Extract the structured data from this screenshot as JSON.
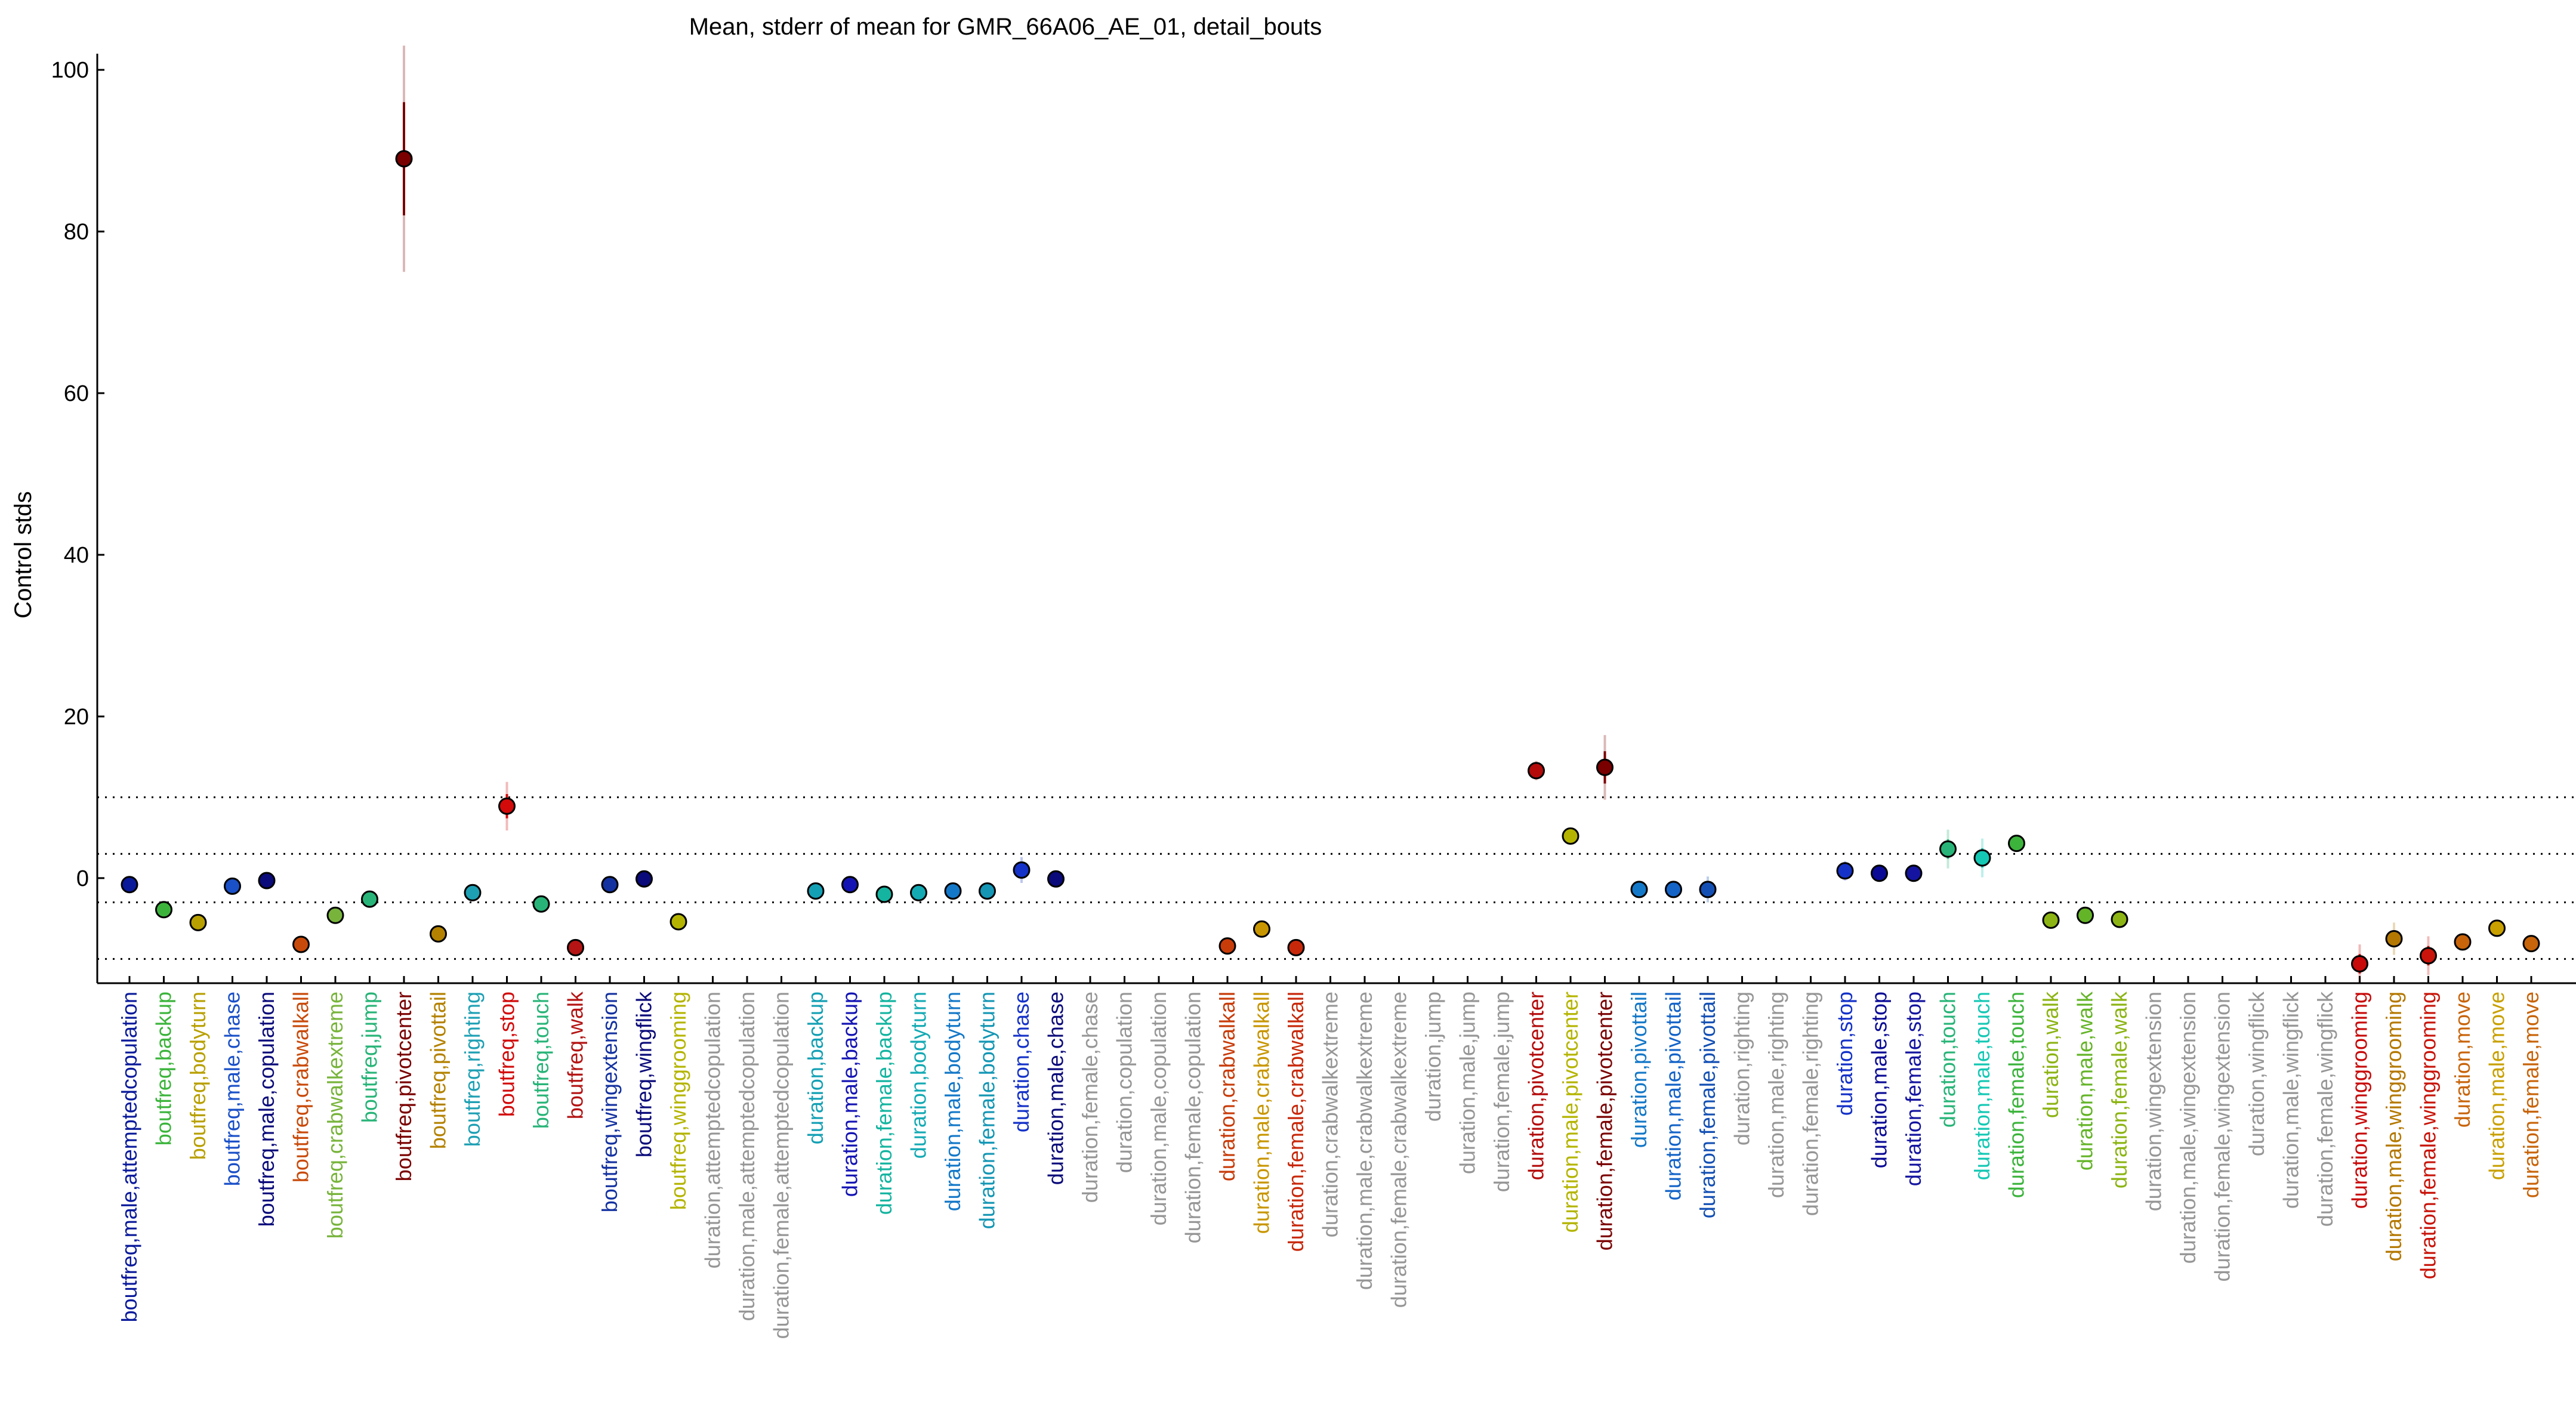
{
  "chart_data": {
    "type": "scatter",
    "title": "Mean, stderr of mean for GMR_66A06_AE_01, detail_bouts",
    "xlabel": "",
    "ylabel": "Control stds",
    "ylim": [
      -13,
      102
    ],
    "yticks": [
      0,
      20,
      40,
      60,
      80,
      100
    ],
    "grid": false,
    "reference_lines_y": [
      -10,
      -3,
      3,
      10
    ],
    "points": [
      {
        "label": "boutfreq,male,attemptedcopulation",
        "y": -0.8,
        "se": 0.4,
        "color": "#0a1a9a",
        "label_color": "#0a1a9a"
      },
      {
        "label": "boutfreq,backup",
        "y": -3.9,
        "se": 0.4,
        "color": "#3cb43c",
        "label_color": "#3cb43c"
      },
      {
        "label": "boutfreq,bodyturn",
        "y": -5.5,
        "se": 0.4,
        "color": "#b8a000",
        "label_color": "#b8a000"
      },
      {
        "label": "boutfreq,male,chase",
        "y": -1.0,
        "se": 0.4,
        "color": "#1a50c8",
        "label_color": "#1a50c8"
      },
      {
        "label": "boutfreq,male,copulation",
        "y": -0.3,
        "se": 0.4,
        "color": "#0a0a7a",
        "label_color": "#0a0a7a"
      },
      {
        "label": "boutfreq,crabwalkall",
        "y": -8.2,
        "se": 0.4,
        "color": "#c84a0a",
        "label_color": "#c84a0a"
      },
      {
        "label": "boutfreq,crabwalkextreme",
        "y": -4.6,
        "se": 0.4,
        "color": "#78b43c",
        "label_color": "#78b43c"
      },
      {
        "label": "boutfreq,jump",
        "y": -2.6,
        "se": 0.4,
        "color": "#28b478",
        "label_color": "#28b478"
      },
      {
        "label": "boutfreq,pivotcenter",
        "y": 89.0,
        "se": 7.0,
        "color": "#7a0000",
        "label_color": "#7a0000"
      },
      {
        "label": "boutfreq,pivottail",
        "y": -6.9,
        "se": 0.4,
        "color": "#b48200",
        "label_color": "#b48200"
      },
      {
        "label": "boutfreq,righting",
        "y": -1.8,
        "se": 0.4,
        "color": "#1ea0b4",
        "label_color": "#1ea0b4"
      },
      {
        "label": "boutfreq,stop",
        "y": 8.9,
        "se": 1.5,
        "color": "#d20a0a",
        "label_color": "#d20a0a"
      },
      {
        "label": "boutfreq,touch",
        "y": -3.2,
        "se": 0.4,
        "color": "#28b478",
        "label_color": "#28b478"
      },
      {
        "label": "boutfreq,walk",
        "y": -8.6,
        "se": 0.4,
        "color": "#b41414",
        "label_color": "#b41414"
      },
      {
        "label": "boutfreq,wingextension",
        "y": -0.8,
        "se": 0.4,
        "color": "#1432a0",
        "label_color": "#1432a0"
      },
      {
        "label": "boutfreq,wingflick",
        "y": -0.1,
        "se": 0.4,
        "color": "#0a0a7a",
        "label_color": "#0a0a7a"
      },
      {
        "label": "boutfreq,winggrooming",
        "y": -5.4,
        "se": 0.4,
        "color": "#b4b400",
        "label_color": "#b4b400"
      },
      {
        "label": "duration,attemptedcopulation",
        "y": null,
        "se": null,
        "color": "#969696",
        "label_color": "#969696"
      },
      {
        "label": "duration,male,attemptedcopulation",
        "y": null,
        "se": null,
        "color": "#969696",
        "label_color": "#969696"
      },
      {
        "label": "duration,female,attemptedcopulation",
        "y": null,
        "se": null,
        "color": "#969696",
        "label_color": "#969696"
      },
      {
        "label": "duration,backup",
        "y": -1.6,
        "se": 0.4,
        "color": "#14a0b4",
        "label_color": "#14a0b4"
      },
      {
        "label": "duration,male,backup",
        "y": -0.8,
        "se": 0.4,
        "color": "#1414b4",
        "label_color": "#1414b4"
      },
      {
        "label": "duration,female,backup",
        "y": -2.0,
        "se": 0.4,
        "color": "#14b4a0",
        "label_color": "#14b4a0"
      },
      {
        "label": "duration,bodyturn",
        "y": -1.8,
        "se": 0.4,
        "color": "#14aab4",
        "label_color": "#14aab4"
      },
      {
        "label": "duration,male,bodyturn",
        "y": -1.6,
        "se": 0.4,
        "color": "#1478c8",
        "label_color": "#1478c8"
      },
      {
        "label": "duration,female,bodyturn",
        "y": -1.6,
        "se": 0.4,
        "color": "#1496b4",
        "label_color": "#1496b4"
      },
      {
        "label": "duration,chase",
        "y": 1.0,
        "se": 0.8,
        "color": "#1432c8",
        "label_color": "#1432c8"
      },
      {
        "label": "duration,male,chase",
        "y": -0.1,
        "se": 0.4,
        "color": "#0a0a7a",
        "label_color": "#0a0a7a"
      },
      {
        "label": "duration,female,chase",
        "y": null,
        "se": null,
        "color": "#969696",
        "label_color": "#969696"
      },
      {
        "label": "duration,copulation",
        "y": null,
        "se": null,
        "color": "#969696",
        "label_color": "#969696"
      },
      {
        "label": "duration,male,copulation",
        "y": null,
        "se": null,
        "color": "#969696",
        "label_color": "#969696"
      },
      {
        "label": "duration,female,copulation",
        "y": null,
        "se": null,
        "color": "#969696",
        "label_color": "#969696"
      },
      {
        "label": "duration,crabwalkall",
        "y": -8.4,
        "se": 0.4,
        "color": "#c83c0a",
        "label_color": "#c83c0a"
      },
      {
        "label": "duration,male,crabwalkall",
        "y": -6.3,
        "se": 0.4,
        "color": "#c89600",
        "label_color": "#c89600"
      },
      {
        "label": "duration,female,crabwalkall",
        "y": -8.6,
        "se": 0.4,
        "color": "#c8280a",
        "label_color": "#c8280a"
      },
      {
        "label": "duration,crabwalkextreme",
        "y": null,
        "se": null,
        "color": "#969696",
        "label_color": "#969696"
      },
      {
        "label": "duration,male,crabwalkextreme",
        "y": null,
        "se": null,
        "color": "#969696",
        "label_color": "#969696"
      },
      {
        "label": "duration,female,crabwalkextreme",
        "y": null,
        "se": null,
        "color": "#969696",
        "label_color": "#969696"
      },
      {
        "label": "duration,jump",
        "y": null,
        "se": null,
        "color": "#969696",
        "label_color": "#969696"
      },
      {
        "label": "duration,male,jump",
        "y": null,
        "se": null,
        "color": "#969696",
        "label_color": "#969696"
      },
      {
        "label": "duration,female,jump",
        "y": null,
        "se": null,
        "color": "#969696",
        "label_color": "#969696"
      },
      {
        "label": "duration,pivotcenter",
        "y": 13.3,
        "se": 0.6,
        "color": "#b40a0a",
        "label_color": "#b40a0a"
      },
      {
        "label": "duration,male,pivotcenter",
        "y": 5.2,
        "se": 0.5,
        "color": "#b4b400",
        "label_color": "#b4b400"
      },
      {
        "label": "duration,female,pivotcenter",
        "y": 13.7,
        "se": 2.0,
        "color": "#7a0000",
        "label_color": "#7a0000"
      },
      {
        "label": "duration,pivottail",
        "y": -1.4,
        "se": 0.4,
        "color": "#1478c8",
        "label_color": "#1478c8"
      },
      {
        "label": "duration,male,pivottail",
        "y": -1.4,
        "se": 0.4,
        "color": "#1464c8",
        "label_color": "#1464c8"
      },
      {
        "label": "duration,female,pivottail",
        "y": -1.4,
        "se": 0.8,
        "color": "#1450b4",
        "label_color": "#1450b4"
      },
      {
        "label": "duration,righting",
        "y": null,
        "se": null,
        "color": "#969696",
        "label_color": "#969696"
      },
      {
        "label": "duration,male,righting",
        "y": null,
        "se": null,
        "color": "#969696",
        "label_color": "#969696"
      },
      {
        "label": "duration,female,righting",
        "y": null,
        "se": null,
        "color": "#969696",
        "label_color": "#969696"
      },
      {
        "label": "duration,stop",
        "y": 0.9,
        "se": 0.6,
        "color": "#1432c8",
        "label_color": "#1432c8"
      },
      {
        "label": "duration,male,stop",
        "y": 0.6,
        "se": 0.4,
        "color": "#0a0a96",
        "label_color": "#0a0a96"
      },
      {
        "label": "duration,female,stop",
        "y": 0.6,
        "se": 0.4,
        "color": "#1414a0",
        "label_color": "#1414a0"
      },
      {
        "label": "duration,touch",
        "y": 3.6,
        "se": 1.2,
        "color": "#28b478",
        "label_color": "#28b478"
      },
      {
        "label": "duration,male,touch",
        "y": 2.5,
        "se": 1.2,
        "color": "#14c8b4",
        "label_color": "#14c8b4"
      },
      {
        "label": "duration,female,touch",
        "y": 4.3,
        "se": 0.5,
        "color": "#3cb43c",
        "label_color": "#3cb43c"
      },
      {
        "label": "duration,walk",
        "y": -5.2,
        "se": 0.4,
        "color": "#8cb414",
        "label_color": "#8cb414"
      },
      {
        "label": "duration,male,walk",
        "y": -4.6,
        "se": 0.4,
        "color": "#64b428",
        "label_color": "#64b428"
      },
      {
        "label": "duration,female,walk",
        "y": -5.1,
        "se": 0.4,
        "color": "#8cb414",
        "label_color": "#8cb414"
      },
      {
        "label": "duration,wingextension",
        "y": null,
        "se": null,
        "color": "#969696",
        "label_color": "#969696"
      },
      {
        "label": "duration,male,wingextension",
        "y": null,
        "se": null,
        "color": "#969696",
        "label_color": "#969696"
      },
      {
        "label": "duration,female,wingextension",
        "y": null,
        "se": null,
        "color": "#969696",
        "label_color": "#969696"
      },
      {
        "label": "duration,wingflick",
        "y": null,
        "se": null,
        "color": "#969696",
        "label_color": "#969696"
      },
      {
        "label": "duration,male,wingflick",
        "y": null,
        "se": null,
        "color": "#969696",
        "label_color": "#969696"
      },
      {
        "label": "duration,female,wingflick",
        "y": null,
        "se": null,
        "color": "#969696",
        "label_color": "#969696"
      },
      {
        "label": "duration,winggrooming",
        "y": -10.6,
        "se": 1.2,
        "color": "#c80a0a",
        "label_color": "#c80a0a"
      },
      {
        "label": "duration,male,winggrooming",
        "y": -7.5,
        "se": 1.0,
        "color": "#b47800",
        "label_color": "#b47800"
      },
      {
        "label": "duration,female,winggrooming",
        "y": -9.6,
        "se": 1.2,
        "color": "#c8140a",
        "label_color": "#c8140a"
      },
      {
        "label": "duration,move",
        "y": -7.9,
        "se": 0.4,
        "color": "#c8640a",
        "label_color": "#c8640a"
      },
      {
        "label": "duration,male,move",
        "y": -6.2,
        "se": 0.4,
        "color": "#c8a000",
        "label_color": "#c8a000"
      },
      {
        "label": "duration,female,move",
        "y": -8.1,
        "se": 0.4,
        "color": "#c8640a",
        "label_color": "#c8640a"
      }
    ]
  }
}
